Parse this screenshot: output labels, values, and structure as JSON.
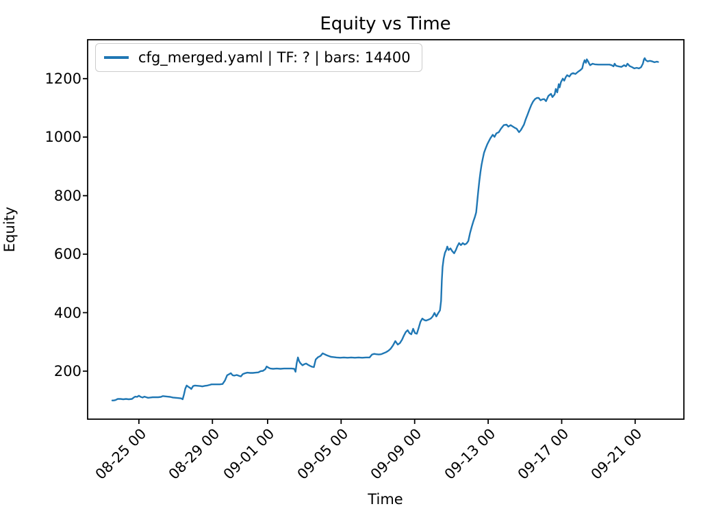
{
  "figure": {
    "title": "Equity vs Time",
    "x_axis_label": "Time",
    "y_axis_label": "Equity",
    "background_color": "#ffffff",
    "spine_color": "#000000",
    "tick_color": "#000000"
  },
  "legend": {
    "label": "cfg_merged.yaml | TF: ? | bars: 14400",
    "sample_color": "#1f77b4"
  },
  "chart_data": {
    "type": "line",
    "title": "Equity vs Time",
    "xlabel": "Time",
    "ylabel": "Equity",
    "x_unit": "days since 08-23 00:00 (x tick labels show date MM-DD HH)",
    "xlim": [
      -0.79,
      31.65
    ],
    "ylim": [
      36,
      1333
    ],
    "grid": false,
    "legend_position": "upper left",
    "line_color": "#1f77b4",
    "x_ticks": [
      {
        "pos": 2,
        "label": "08-25 00"
      },
      {
        "pos": 6,
        "label": "08-29 00"
      },
      {
        "pos": 9,
        "label": "09-01 00"
      },
      {
        "pos": 13,
        "label": "09-05 00"
      },
      {
        "pos": 17,
        "label": "09-09 00"
      },
      {
        "pos": 21,
        "label": "09-13 00"
      },
      {
        "pos": 25,
        "label": "09-17 00"
      },
      {
        "pos": 29,
        "label": "09-21 00"
      }
    ],
    "y_ticks": [
      {
        "pos": 200,
        "label": "200"
      },
      {
        "pos": 400,
        "label": "400"
      },
      {
        "pos": 600,
        "label": "600"
      },
      {
        "pos": 800,
        "label": "800"
      },
      {
        "pos": 1000,
        "label": "1000"
      },
      {
        "pos": 1200,
        "label": "1200"
      }
    ],
    "series": [
      {
        "name": "cfg_merged.yaml | TF: ? | bars: 14400",
        "color": "#1f77b4",
        "points": [
          [
            0.55,
            100
          ],
          [
            0.62,
            100
          ],
          [
            0.72,
            101
          ],
          [
            0.85,
            105
          ],
          [
            1.0,
            105
          ],
          [
            1.15,
            104
          ],
          [
            1.3,
            105
          ],
          [
            1.45,
            104
          ],
          [
            1.62,
            105
          ],
          [
            1.72,
            110
          ],
          [
            1.8,
            113
          ],
          [
            1.9,
            112
          ],
          [
            2.0,
            116
          ],
          [
            2.1,
            112
          ],
          [
            2.2,
            110
          ],
          [
            2.3,
            113
          ],
          [
            2.4,
            111
          ],
          [
            2.5,
            109
          ],
          [
            2.62,
            110
          ],
          [
            2.75,
            111
          ],
          [
            2.9,
            111
          ],
          [
            3.05,
            111
          ],
          [
            3.2,
            112
          ],
          [
            3.3,
            115
          ],
          [
            3.42,
            114
          ],
          [
            3.55,
            113
          ],
          [
            3.7,
            112
          ],
          [
            3.85,
            110
          ],
          [
            4.0,
            109
          ],
          [
            4.15,
            108
          ],
          [
            4.3,
            107
          ],
          [
            4.38,
            104
          ],
          [
            4.45,
            120
          ],
          [
            4.52,
            140
          ],
          [
            4.6,
            151
          ],
          [
            4.68,
            147
          ],
          [
            4.78,
            143
          ],
          [
            4.85,
            139
          ],
          [
            4.95,
            149
          ],
          [
            5.05,
            151
          ],
          [
            5.2,
            150
          ],
          [
            5.35,
            149
          ],
          [
            5.45,
            148
          ],
          [
            5.6,
            150
          ],
          [
            5.72,
            151
          ],
          [
            5.85,
            153
          ],
          [
            5.95,
            155
          ],
          [
            6.1,
            155
          ],
          [
            6.25,
            155
          ],
          [
            6.4,
            155
          ],
          [
            6.55,
            156
          ],
          [
            6.68,
            168
          ],
          [
            6.8,
            186
          ],
          [
            6.92,
            190
          ],
          [
            7.0,
            193
          ],
          [
            7.1,
            186
          ],
          [
            7.2,
            185
          ],
          [
            7.32,
            187
          ],
          [
            7.45,
            184
          ],
          [
            7.55,
            182
          ],
          [
            7.65,
            190
          ],
          [
            7.78,
            193
          ],
          [
            7.9,
            195
          ],
          [
            8.05,
            194
          ],
          [
            8.2,
            194
          ],
          [
            8.35,
            195
          ],
          [
            8.5,
            196
          ],
          [
            8.62,
            200
          ],
          [
            8.75,
            201
          ],
          [
            8.88,
            207
          ],
          [
            8.95,
            216
          ],
          [
            9.05,
            212
          ],
          [
            9.15,
            209
          ],
          [
            9.3,
            208
          ],
          [
            9.5,
            209
          ],
          [
            9.7,
            208
          ],
          [
            9.9,
            209
          ],
          [
            10.1,
            209
          ],
          [
            10.3,
            209
          ],
          [
            10.45,
            208
          ],
          [
            10.52,
            198
          ],
          [
            10.58,
            226
          ],
          [
            10.65,
            247
          ],
          [
            10.72,
            234
          ],
          [
            10.78,
            228
          ],
          [
            10.9,
            220
          ],
          [
            11.0,
            224
          ],
          [
            11.1,
            226
          ],
          [
            11.2,
            222
          ],
          [
            11.32,
            218
          ],
          [
            11.42,
            215
          ],
          [
            11.52,
            214
          ],
          [
            11.62,
            240
          ],
          [
            11.75,
            248
          ],
          [
            11.88,
            252
          ],
          [
            12.0,
            261
          ],
          [
            12.1,
            258
          ],
          [
            12.2,
            255
          ],
          [
            12.32,
            252
          ],
          [
            12.45,
            249
          ],
          [
            12.6,
            248
          ],
          [
            12.75,
            247
          ],
          [
            12.95,
            246
          ],
          [
            13.15,
            247
          ],
          [
            13.35,
            246
          ],
          [
            13.55,
            247
          ],
          [
            13.75,
            246
          ],
          [
            13.95,
            247
          ],
          [
            14.15,
            246
          ],
          [
            14.35,
            247
          ],
          [
            14.55,
            247
          ],
          [
            14.68,
            257
          ],
          [
            14.8,
            259
          ],
          [
            14.92,
            258
          ],
          [
            15.05,
            257
          ],
          [
            15.18,
            258
          ],
          [
            15.3,
            261
          ],
          [
            15.45,
            265
          ],
          [
            15.58,
            270
          ],
          [
            15.7,
            277
          ],
          [
            15.82,
            288
          ],
          [
            15.95,
            303
          ],
          [
            16.08,
            291
          ],
          [
            16.2,
            296
          ],
          [
            16.32,
            308
          ],
          [
            16.42,
            322
          ],
          [
            16.52,
            334
          ],
          [
            16.62,
            340
          ],
          [
            16.72,
            330
          ],
          [
            16.82,
            326
          ],
          [
            16.92,
            345
          ],
          [
            17.02,
            330
          ],
          [
            17.12,
            328
          ],
          [
            17.22,
            348
          ],
          [
            17.32,
            369
          ],
          [
            17.42,
            380
          ],
          [
            17.52,
            375
          ],
          [
            17.62,
            373
          ],
          [
            17.75,
            376
          ],
          [
            17.88,
            380
          ],
          [
            17.98,
            387
          ],
          [
            18.08,
            399
          ],
          [
            18.18,
            387
          ],
          [
            18.28,
            398
          ],
          [
            18.38,
            408
          ],
          [
            18.44,
            440
          ],
          [
            18.48,
            510
          ],
          [
            18.52,
            556
          ],
          [
            18.58,
            585
          ],
          [
            18.65,
            605
          ],
          [
            18.72,
            614
          ],
          [
            18.78,
            626
          ],
          [
            18.85,
            614
          ],
          [
            18.95,
            620
          ],
          [
            19.05,
            610
          ],
          [
            19.15,
            603
          ],
          [
            19.25,
            615
          ],
          [
            19.32,
            626
          ],
          [
            19.42,
            638
          ],
          [
            19.52,
            631
          ],
          [
            19.62,
            638
          ],
          [
            19.72,
            633
          ],
          [
            19.82,
            636
          ],
          [
            19.92,
            645
          ],
          [
            20.02,
            673
          ],
          [
            20.12,
            696
          ],
          [
            20.2,
            713
          ],
          [
            20.28,
            727
          ],
          [
            20.35,
            743
          ],
          [
            20.4,
            774
          ],
          [
            20.46,
            815
          ],
          [
            20.52,
            850
          ],
          [
            20.58,
            880
          ],
          [
            20.64,
            905
          ],
          [
            20.7,
            924
          ],
          [
            20.78,
            947
          ],
          [
            20.86,
            961
          ],
          [
            20.95,
            975
          ],
          [
            21.02,
            984
          ],
          [
            21.12,
            996
          ],
          [
            21.25,
            1008
          ],
          [
            21.35,
            1001
          ],
          [
            21.45,
            1013
          ],
          [
            21.58,
            1017
          ],
          [
            21.7,
            1029
          ],
          [
            21.85,
            1041
          ],
          [
            22.0,
            1043
          ],
          [
            22.1,
            1036
          ],
          [
            22.22,
            1041
          ],
          [
            22.35,
            1036
          ],
          [
            22.45,
            1032
          ],
          [
            22.55,
            1029
          ],
          [
            22.68,
            1017
          ],
          [
            22.78,
            1024
          ],
          [
            22.95,
            1043
          ],
          [
            23.05,
            1062
          ],
          [
            23.15,
            1078
          ],
          [
            23.25,
            1095
          ],
          [
            23.35,
            1110
          ],
          [
            23.45,
            1122
          ],
          [
            23.55,
            1130
          ],
          [
            23.65,
            1134
          ],
          [
            23.75,
            1134
          ],
          [
            23.85,
            1126
          ],
          [
            23.95,
            1129
          ],
          [
            24.05,
            1130
          ],
          [
            24.15,
            1123
          ],
          [
            24.28,
            1141
          ],
          [
            24.42,
            1148
          ],
          [
            24.5,
            1137
          ],
          [
            24.62,
            1146
          ],
          [
            24.68,
            1165
          ],
          [
            24.76,
            1153
          ],
          [
            24.84,
            1181
          ],
          [
            24.89,
            1170
          ],
          [
            24.96,
            1188
          ],
          [
            25.06,
            1200
          ],
          [
            25.14,
            1193
          ],
          [
            25.22,
            1205
          ],
          [
            25.3,
            1212
          ],
          [
            25.42,
            1207
          ],
          [
            25.52,
            1216
          ],
          [
            25.62,
            1219
          ],
          [
            25.75,
            1216
          ],
          [
            25.88,
            1223
          ],
          [
            26.0,
            1228
          ],
          [
            26.12,
            1235
          ],
          [
            26.18,
            1251
          ],
          [
            26.25,
            1263
          ],
          [
            26.32,
            1254
          ],
          [
            26.37,
            1266
          ],
          [
            26.44,
            1259
          ],
          [
            26.5,
            1251
          ],
          [
            26.55,
            1246
          ],
          [
            26.68,
            1251
          ],
          [
            26.8,
            1249
          ],
          [
            27.0,
            1248
          ],
          [
            27.2,
            1248
          ],
          [
            27.4,
            1248
          ],
          [
            27.6,
            1248
          ],
          [
            27.72,
            1246
          ],
          [
            27.82,
            1242
          ],
          [
            27.88,
            1251
          ],
          [
            27.96,
            1244
          ],
          [
            28.1,
            1242
          ],
          [
            28.25,
            1240
          ],
          [
            28.4,
            1246
          ],
          [
            28.5,
            1242
          ],
          [
            28.58,
            1251
          ],
          [
            28.7,
            1243
          ],
          [
            28.84,
            1239
          ],
          [
            28.95,
            1235
          ],
          [
            29.08,
            1237
          ],
          [
            29.2,
            1235
          ],
          [
            29.32,
            1239
          ],
          [
            29.42,
            1251
          ],
          [
            29.48,
            1266
          ],
          [
            29.52,
            1270
          ],
          [
            29.58,
            1263
          ],
          [
            29.68,
            1259
          ],
          [
            29.8,
            1261
          ],
          [
            29.92,
            1259
          ],
          [
            30.05,
            1256
          ],
          [
            30.18,
            1258
          ],
          [
            30.25,
            1257
          ]
        ]
      }
    ]
  }
}
